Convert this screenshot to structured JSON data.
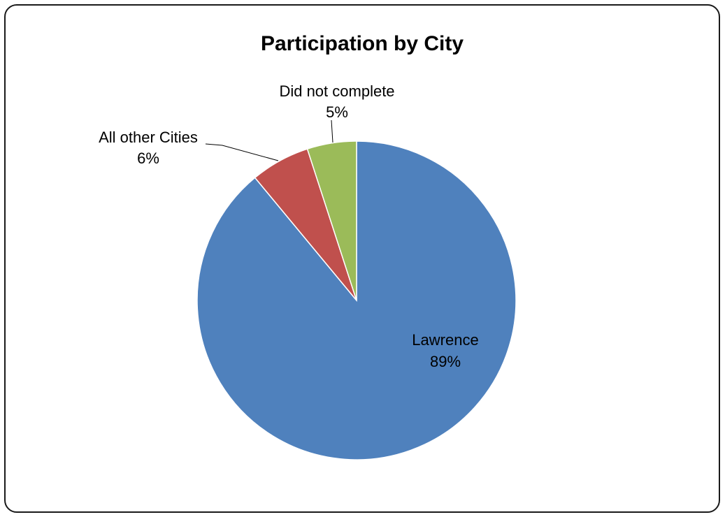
{
  "chart_data": {
    "type": "pie",
    "title": "Participation by City",
    "slices": [
      {
        "label": "Lawrence",
        "value": 89,
        "value_label": "89%",
        "color": "#4F81BD"
      },
      {
        "label": "All other Cities",
        "value": 6,
        "value_label": "6%",
        "color": "#C0504D"
      },
      {
        "label": "Did not complete",
        "value": 5,
        "value_label": "5%",
        "color": "#9BBB59"
      }
    ],
    "legend": "none",
    "data_labels": "category name and percentage"
  }
}
